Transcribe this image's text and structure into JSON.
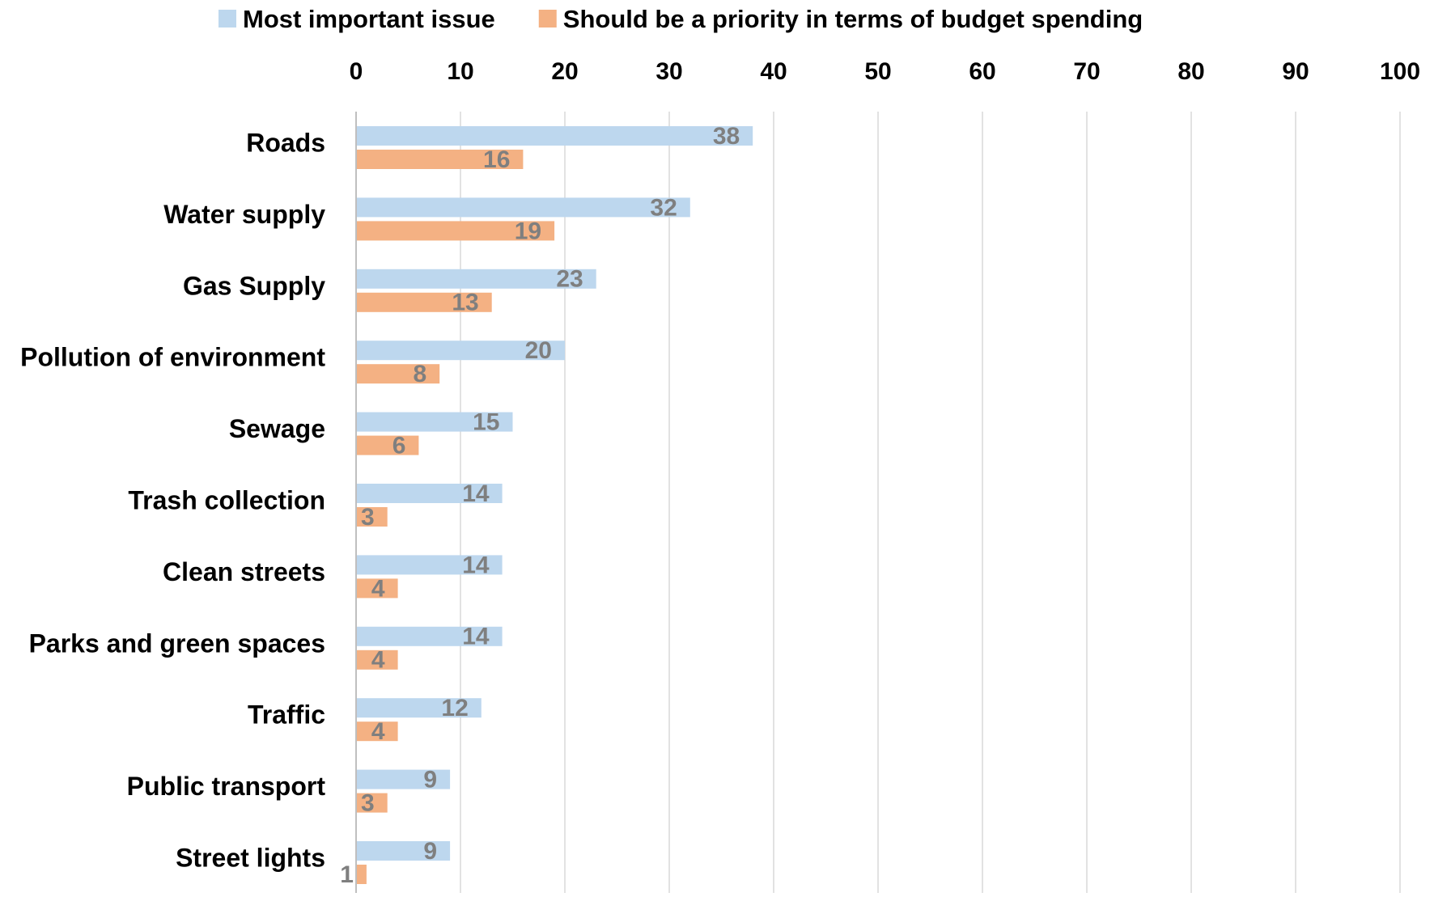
{
  "chart_data": {
    "type": "bar",
    "orientation": "horizontal",
    "title": "",
    "xlabel": "",
    "ylabel": "",
    "xlim": [
      0,
      100
    ],
    "ticks": [
      "0",
      "10",
      "20",
      "30",
      "40",
      "50",
      "60",
      "70",
      "80",
      "90",
      "100"
    ],
    "grid": true,
    "legend_position": "top",
    "categories": [
      "Roads",
      "Water supply",
      "Gas Supply",
      "Pollution of environment",
      "Sewage",
      "Trash collection",
      "Clean streets",
      "Parks and green spaces",
      "Traffic",
      "Public transport",
      "Street lights"
    ],
    "series": [
      {
        "name": "Most important issue",
        "color": "#bdd7ee",
        "values": [
          38,
          32,
          23,
          20,
          15,
          14,
          14,
          14,
          12,
          9,
          9
        ]
      },
      {
        "name": "Should be a priority in terms of budget spending",
        "color": "#f4b183",
        "values": [
          16,
          19,
          13,
          8,
          6,
          3,
          4,
          4,
          4,
          3,
          1
        ]
      }
    ]
  }
}
